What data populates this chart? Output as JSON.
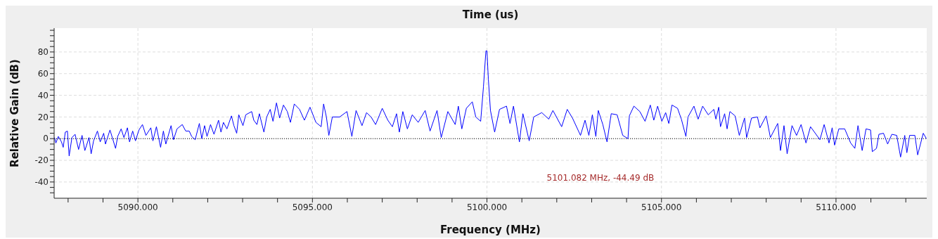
{
  "chart_data": {
    "type": "line",
    "title": "Time (us)",
    "xlabel": "Frequency (MHz)",
    "ylabel": "Relative Gain (dB)",
    "xlim": [
      5087.6,
      5112.6
    ],
    "ylim": [
      -55,
      102
    ],
    "xticks": [
      {
        "value": 5088,
        "label": null
      },
      {
        "value": 5089,
        "label": null
      },
      {
        "value": 5090,
        "label": "5090.000"
      },
      {
        "value": 5091,
        "label": null
      },
      {
        "value": 5092,
        "label": null
      },
      {
        "value": 5093,
        "label": null
      },
      {
        "value": 5094,
        "label": null
      },
      {
        "value": 5095,
        "label": "5095.000"
      },
      {
        "value": 5096,
        "label": null
      },
      {
        "value": 5097,
        "label": null
      },
      {
        "value": 5098,
        "label": null
      },
      {
        "value": 5099,
        "label": null
      },
      {
        "value": 5100,
        "label": "5100.000"
      },
      {
        "value": 5101,
        "label": null
      },
      {
        "value": 5102,
        "label": null
      },
      {
        "value": 5103,
        "label": null
      },
      {
        "value": 5104,
        "label": null
      },
      {
        "value": 5105,
        "label": "5105.000"
      },
      {
        "value": 5106,
        "label": null
      },
      {
        "value": 5107,
        "label": null
      },
      {
        "value": 5108,
        "label": null
      },
      {
        "value": 5109,
        "label": null
      },
      {
        "value": 5110,
        "label": "5110.000"
      },
      {
        "value": 5111,
        "label": null
      },
      {
        "value": 5112,
        "label": null
      }
    ],
    "yticks": [
      {
        "value": -50,
        "label": null
      },
      {
        "value": -45,
        "label": null
      },
      -40,
      {
        "value": -35,
        "label": null
      },
      {
        "value": -30,
        "label": null
      },
      {
        "value": -25,
        "label": null
      },
      -20,
      {
        "value": -15,
        "label": null
      },
      {
        "value": -10,
        "label": null
      },
      {
        "value": -5,
        "label": null
      },
      0,
      {
        "value": 5,
        "label": null
      },
      {
        "value": 10,
        "label": null
      },
      {
        "value": 15,
        "label": null
      },
      20,
      {
        "value": 25,
        "label": null
      },
      {
        "value": 30,
        "label": null
      },
      {
        "value": 35,
        "label": null
      },
      40,
      {
        "value": 45,
        "label": null
      },
      {
        "value": 50,
        "label": null
      },
      {
        "value": 55,
        "label": null
      },
      60,
      {
        "value": 65,
        "label": null
      },
      {
        "value": 70,
        "label": null
      },
      {
        "value": 75,
        "label": null
      },
      80,
      {
        "value": 85,
        "label": null
      },
      {
        "value": 90,
        "label": null
      },
      {
        "value": 95,
        "label": null
      },
      {
        "value": 100,
        "label": null
      }
    ],
    "grid": true,
    "marker": "none",
    "line_style": "solid",
    "ref_lines": [
      {
        "axis": "y",
        "value": 0,
        "color": "#000000",
        "line_style": "dotted"
      }
    ],
    "annotations": [
      "5101.082 MHz, -44.49 dB"
    ],
    "x": [
      5087.61,
      5087.65,
      5087.72,
      5087.81,
      5087.86,
      5087.92,
      5087.98,
      5088.03,
      5088.11,
      5088.2,
      5088.3,
      5088.4,
      5088.48,
      5088.6,
      5088.66,
      5088.73,
      5088.84,
      5088.92,
      5089.02,
      5089.07,
      5089.2,
      5089.36,
      5089.42,
      5089.52,
      5089.6,
      5089.7,
      5089.76,
      5089.85,
      5089.93,
      5090.03,
      5090.13,
      5090.23,
      5090.37,
      5090.43,
      5090.53,
      5090.65,
      5090.73,
      5090.8,
      5090.95,
      5091.02,
      5091.12,
      5091.27,
      5091.37,
      5091.47,
      5091.54,
      5091.64,
      5091.76,
      5091.83,
      5091.91,
      5091.98,
      5092.08,
      5092.18,
      5092.31,
      5092.38,
      5092.45,
      5092.55,
      5092.68,
      5092.75,
      5092.83,
      5092.89,
      5093.01,
      5093.09,
      5093.26,
      5093.32,
      5093.41,
      5093.48,
      5093.61,
      5093.69,
      5093.79,
      5093.87,
      5093.97,
      5094.06,
      5094.17,
      5094.28,
      5094.37,
      5094.48,
      5094.63,
      5094.77,
      5094.93,
      5095.1,
      5095.25,
      5095.32,
      5095.4,
      5095.47,
      5095.57,
      5095.78,
      5095.99,
      5096.13,
      5096.25,
      5096.42,
      5096.55,
      5096.68,
      5096.81,
      5097.0,
      5097.16,
      5097.29,
      5097.41,
      5097.49,
      5097.59,
      5097.72,
      5097.86,
      5098.03,
      5098.23,
      5098.37,
      5098.57,
      5098.69,
      5098.88,
      5099.09,
      5099.18,
      5099.28,
      5099.41,
      5099.58,
      5099.68,
      5099.82,
      5099.9,
      5099.97,
      5100.0,
      5100.04,
      5100.1,
      5100.22,
      5100.36,
      5100.56,
      5100.66,
      5100.76,
      5100.93,
      5101.03,
      5101.21,
      5101.34,
      5101.57,
      5101.77,
      5101.89,
      5102.14,
      5102.3,
      5102.45,
      5102.68,
      5102.81,
      5102.92,
      5103.02,
      5103.12,
      5103.19,
      5103.32,
      5103.44,
      5103.56,
      5103.73,
      5103.89,
      5104.04,
      5104.08,
      5104.21,
      5104.38,
      5104.53,
      5104.68,
      5104.78,
      5104.89,
      5105.01,
      5105.12,
      5105.21,
      5105.3,
      5105.46,
      5105.57,
      5105.7,
      5105.76,
      5105.93,
      5106.05,
      5106.18,
      5106.34,
      5106.5,
      5106.56,
      5106.64,
      5106.69,
      5106.81,
      5106.88,
      5106.96,
      5107.11,
      5107.23,
      5107.38,
      5107.44,
      5107.58,
      5107.75,
      5107.82,
      5108.0,
      5108.12,
      5108.33,
      5108.41,
      5108.51,
      5108.6,
      5108.68,
      5108.74,
      5108.87,
      5109.0,
      5109.14,
      5109.27,
      5109.54,
      5109.66,
      5109.8,
      5109.89,
      5109.96,
      5110.08,
      5110.25,
      5110.42,
      5110.54,
      5110.63,
      5110.75,
      5110.86,
      5110.99,
      5111.04,
      5111.16,
      5111.23,
      5111.36,
      5111.48,
      5111.6,
      5111.74,
      5111.85,
      5111.97,
      5112.03,
      5112.11,
      5112.26,
      5112.34,
      5112.5,
      5112.59
    ],
    "series": [
      {
        "color": "#0000ff",
        "values": [
          1,
          -4,
          2,
          -3,
          -8,
          6,
          7,
          -16,
          1,
          4,
          -10,
          3,
          -11,
          1,
          -14,
          -2,
          7,
          -3,
          5,
          -5,
          8,
          -9,
          2,
          9,
          1,
          10,
          -3,
          7,
          -2,
          8,
          13,
          3,
          10,
          -2,
          11,
          -8,
          7,
          -5,
          12,
          -1,
          9,
          13,
          7,
          7,
          2,
          -1,
          14,
          0,
          12,
          2,
          13,
          4,
          17,
          6,
          15,
          9,
          21,
          12,
          5,
          22,
          12,
          22,
          25,
          17,
          13,
          23,
          6,
          20,
          27,
          16,
          33,
          19,
          31,
          25,
          15,
          32,
          27,
          17,
          29,
          15,
          11,
          32,
          20,
          3,
          20,
          20,
          25,
          2,
          26,
          12,
          24,
          20,
          13,
          28,
          17,
          11,
          23,
          6,
          25,
          9,
          22,
          15,
          26,
          7,
          26,
          1,
          25,
          13,
          30,
          9,
          28,
          34,
          20,
          16,
          48,
          81,
          81,
          55,
          26,
          6,
          27,
          30,
          14,
          30,
          -3,
          23,
          -2,
          20,
          24,
          18,
          26,
          11,
          27,
          19,
          3,
          17,
          3,
          22,
          2,
          26,
          13,
          -3,
          23,
          22,
          3,
          0,
          21,
          30,
          25,
          16,
          31,
          17,
          30,
          16,
          24,
          14,
          31,
          28,
          18,
          2,
          20,
          30,
          18,
          30,
          22,
          27,
          18,
          29,
          11,
          23,
          9,
          25,
          21,
          3,
          19,
          1,
          19,
          20,
          10,
          21,
          1,
          14,
          -11,
          12,
          -14,
          1,
          12,
          3,
          13,
          -4,
          11,
          -1,
          13,
          -4,
          10,
          -6,
          9,
          9,
          -4,
          -9,
          12,
          -11,
          9,
          8,
          -12,
          -9,
          4,
          5,
          -5,
          4,
          3,
          -17,
          3,
          -13,
          3,
          3,
          -15,
          5,
          0
        ]
      }
    ]
  }
}
